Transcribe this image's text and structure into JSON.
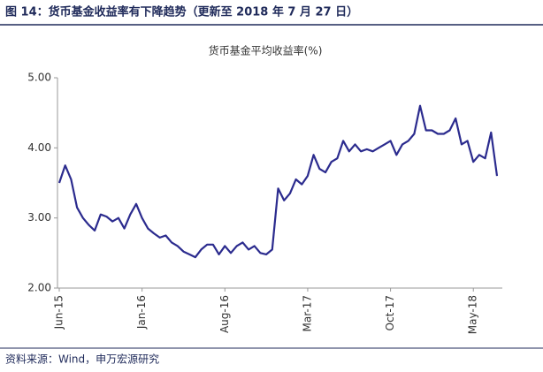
{
  "header": {
    "title": "图 14：货币基金收益率有下降趋势（更新至 2018 年 7 月 27 日）"
  },
  "chart_data": {
    "type": "line",
    "title": "货币基金平均收益率(%)",
    "categories": [
      "Jun-15",
      null,
      null,
      null,
      null,
      null,
      null,
      null,
      null,
      null,
      null,
      null,
      null,
      null,
      "Jan-16",
      null,
      null,
      null,
      null,
      null,
      null,
      null,
      null,
      null,
      null,
      null,
      null,
      null,
      "Aug-16",
      null,
      null,
      null,
      null,
      null,
      null,
      null,
      null,
      null,
      null,
      null,
      null,
      null,
      "Mar-17",
      null,
      null,
      null,
      null,
      null,
      null,
      null,
      null,
      null,
      null,
      null,
      null,
      null,
      "Oct-17",
      null,
      null,
      null,
      null,
      null,
      null,
      null,
      null,
      null,
      null,
      null,
      null,
      null,
      "May-18",
      null,
      null,
      null,
      null
    ],
    "series": [
      {
        "color": "#2b2b8e",
        "values": [
          3.5,
          3.75,
          3.55,
          3.15,
          3.0,
          2.9,
          2.82,
          3.05,
          3.02,
          2.95,
          3.0,
          2.85,
          3.05,
          3.2,
          3.0,
          2.85,
          2.78,
          2.72,
          2.75,
          2.65,
          2.6,
          2.52,
          2.48,
          2.44,
          2.55,
          2.62,
          2.62,
          2.48,
          2.6,
          2.5,
          2.6,
          2.65,
          2.55,
          2.6,
          2.5,
          2.48,
          2.55,
          3.42,
          3.25,
          3.35,
          3.55,
          3.48,
          3.6,
          3.9,
          3.7,
          3.65,
          3.8,
          3.85,
          4.1,
          3.95,
          4.05,
          3.95,
          3.98,
          3.95,
          4.0,
          4.05,
          4.1,
          3.9,
          4.05,
          4.1,
          4.2,
          4.6,
          4.25,
          4.25,
          4.2,
          4.2,
          4.25,
          4.42,
          4.05,
          4.1,
          3.8,
          3.9,
          3.85,
          4.22,
          3.6
        ]
      }
    ],
    "ylim": [
      2,
      5
    ],
    "yticks": [
      {
        "value": 2,
        "label": "2.00"
      },
      {
        "value": 3,
        "label": "3.00"
      },
      {
        "value": 4,
        "label": "4.00"
      },
      {
        "value": 5,
        "label": "5.00"
      }
    ]
  },
  "footer": {
    "source": "资料来源：Wind，申万宏源研究"
  }
}
